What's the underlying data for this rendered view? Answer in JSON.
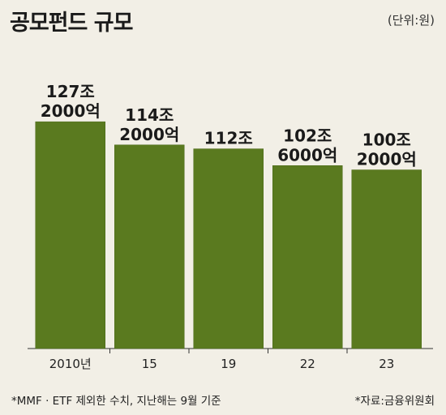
{
  "title": "공모펀드 규모",
  "unit": "(단위:원)",
  "note": "*MMF · ETF 제외한 수치, 지난해는 9월 기준",
  "source": "*자료:금융위원회",
  "colors": {
    "bar": "#5a7a1f",
    "bar_edge": "#4a6818",
    "background": "#f2efe6",
    "axis": "#333333"
  },
  "chart_data": {
    "type": "bar",
    "title": "공모펀드 규모",
    "unit": "원",
    "categories": [
      "2010년",
      "15",
      "19",
      "22",
      "23"
    ],
    "values": [
      127.2,
      114.2,
      112,
      102.6,
      100.2
    ],
    "value_unit": "조원",
    "data_labels": [
      [
        "127조",
        "2000억"
      ],
      [
        "114조",
        "2000억"
      ],
      [
        "112조"
      ],
      [
        "102조",
        "6000억"
      ],
      [
        "100조",
        "2000억"
      ]
    ],
    "grid": false,
    "legend": "none"
  }
}
